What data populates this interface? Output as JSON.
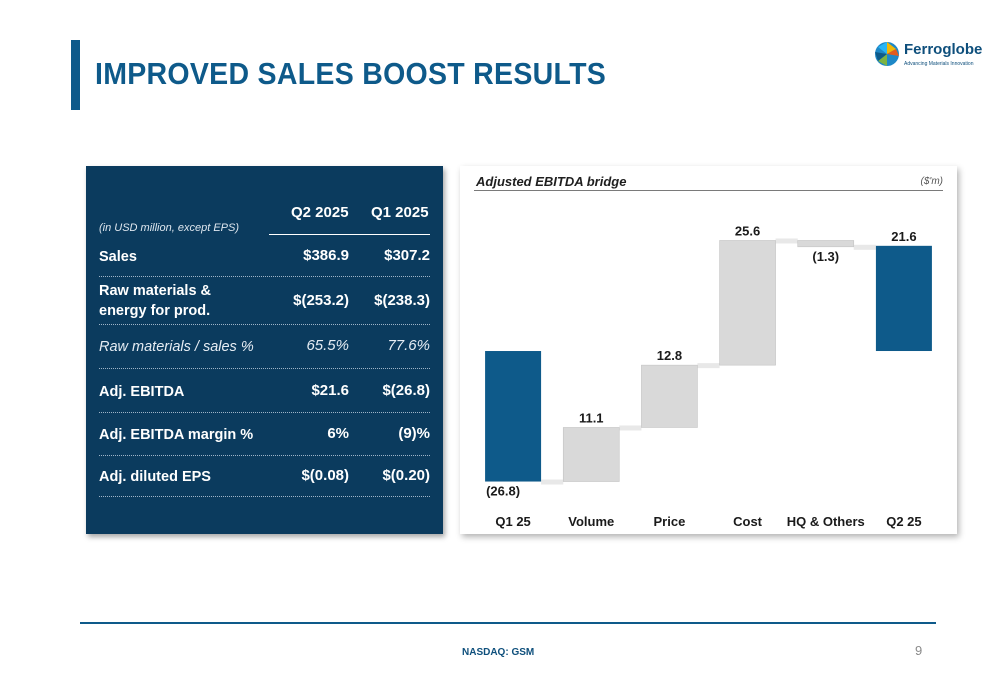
{
  "slide": {
    "title": "IMPROVED SALES BOOST RESULTS",
    "page_number": "9",
    "footer": "NASDAQ: GSM",
    "accent_color": "#0e5a8a"
  },
  "logo": {
    "name": "Ferroglobe",
    "tagline": "Advancing Materials Innovation"
  },
  "table": {
    "units_note": "(in USD million, except EPS)",
    "columns": [
      "Q2 2025",
      "Q1 2025"
    ],
    "rows": [
      {
        "label": "Sales",
        "q2": "$386.9",
        "q1": "$307.2"
      },
      {
        "label": "Raw materials & energy for prod.",
        "label_line1": "Raw materials &",
        "label_line2": "energy for prod.",
        "q2": "$(253.2)",
        "q1": "$(238.3)"
      },
      {
        "label": "Raw materials / sales %",
        "q2": "65.5%",
        "q1": "77.6%"
      },
      {
        "label": "Adj. EBITDA",
        "q2": "$21.6",
        "q1": "$(26.8)"
      },
      {
        "label": "Adj. EBITDA margin %",
        "q2": "6%",
        "q1": "(9)%"
      },
      {
        "label": "Adj. diluted EPS",
        "q2": "$(0.08)",
        "q1": "$(0.20)"
      }
    ]
  },
  "chart_data": {
    "type": "bar",
    "subtype": "waterfall",
    "title": "Adjusted EBITDA bridge",
    "unit_label": "($'m)",
    "categories": [
      "Q1 25",
      "Volume",
      "Price",
      "Cost",
      "HQ & Others",
      "Q2 25"
    ],
    "values": [
      -26.8,
      11.1,
      12.8,
      25.6,
      -1.3,
      21.6
    ],
    "data_labels": [
      "(26.8)",
      "11.1",
      "12.8",
      "25.6",
      "(1.3)",
      "21.6"
    ],
    "bar_kind": [
      "total",
      "delta",
      "delta",
      "delta",
      "delta",
      "total"
    ],
    "colors": {
      "total": "#0e5a8a",
      "delta": "#d9d9d9",
      "connector": "#e8e8e8"
    }
  }
}
